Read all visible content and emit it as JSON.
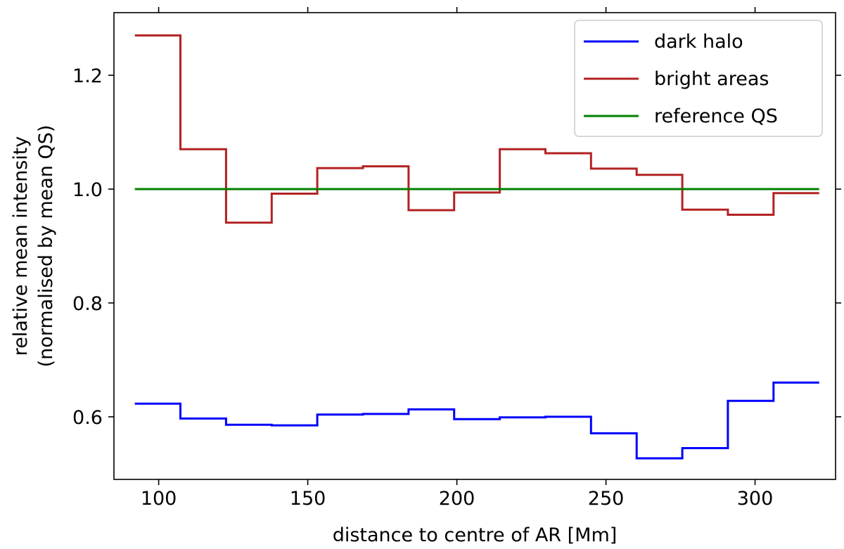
{
  "chart_data": {
    "type": "line",
    "step": "post",
    "title": "",
    "xlabel": "distance to centre of AR [Mm]",
    "ylabel_lines": [
      "relative mean intensity",
      "(normalised by mean QS)"
    ],
    "xlim": [
      85,
      327
    ],
    "ylim": [
      0.49,
      1.31
    ],
    "xticks": [
      100,
      150,
      200,
      250,
      300
    ],
    "yticks": [
      0.6,
      0.8,
      1.0,
      1.2
    ],
    "xtick_labels": [
      "100",
      "150",
      "200",
      "250",
      "300"
    ],
    "ytick_labels": [
      "0.6",
      "0.8",
      "1.0",
      "1.2"
    ],
    "grid": false,
    "legend_position": "upper right",
    "x_edges": [
      92,
      107.3,
      122.6,
      137.9,
      153.2,
      168.5,
      183.8,
      199.1,
      214.4,
      229.7,
      245,
      260.3,
      275.6,
      290.9,
      306.2,
      321.5
    ],
    "series": [
      {
        "name": "dark halo",
        "color": "#0000ff",
        "values": [
          0.623,
          0.597,
          0.586,
          0.585,
          0.604,
          0.605,
          0.613,
          0.596,
          0.599,
          0.6,
          0.571,
          0.527,
          0.545,
          0.628,
          0.66
        ]
      },
      {
        "name": "bright areas",
        "color": "#b22222",
        "values": [
          1.27,
          1.07,
          0.941,
          0.992,
          1.037,
          1.04,
          0.963,
          0.994,
          1.07,
          1.063,
          1.036,
          1.025,
          0.964,
          0.955,
          0.993
        ]
      },
      {
        "name": "reference QS",
        "color": "#008000",
        "values": [
          1.0,
          1.0,
          1.0,
          1.0,
          1.0,
          1.0,
          1.0,
          1.0,
          1.0,
          1.0,
          1.0,
          1.0,
          1.0,
          1.0,
          1.0
        ]
      }
    ]
  }
}
